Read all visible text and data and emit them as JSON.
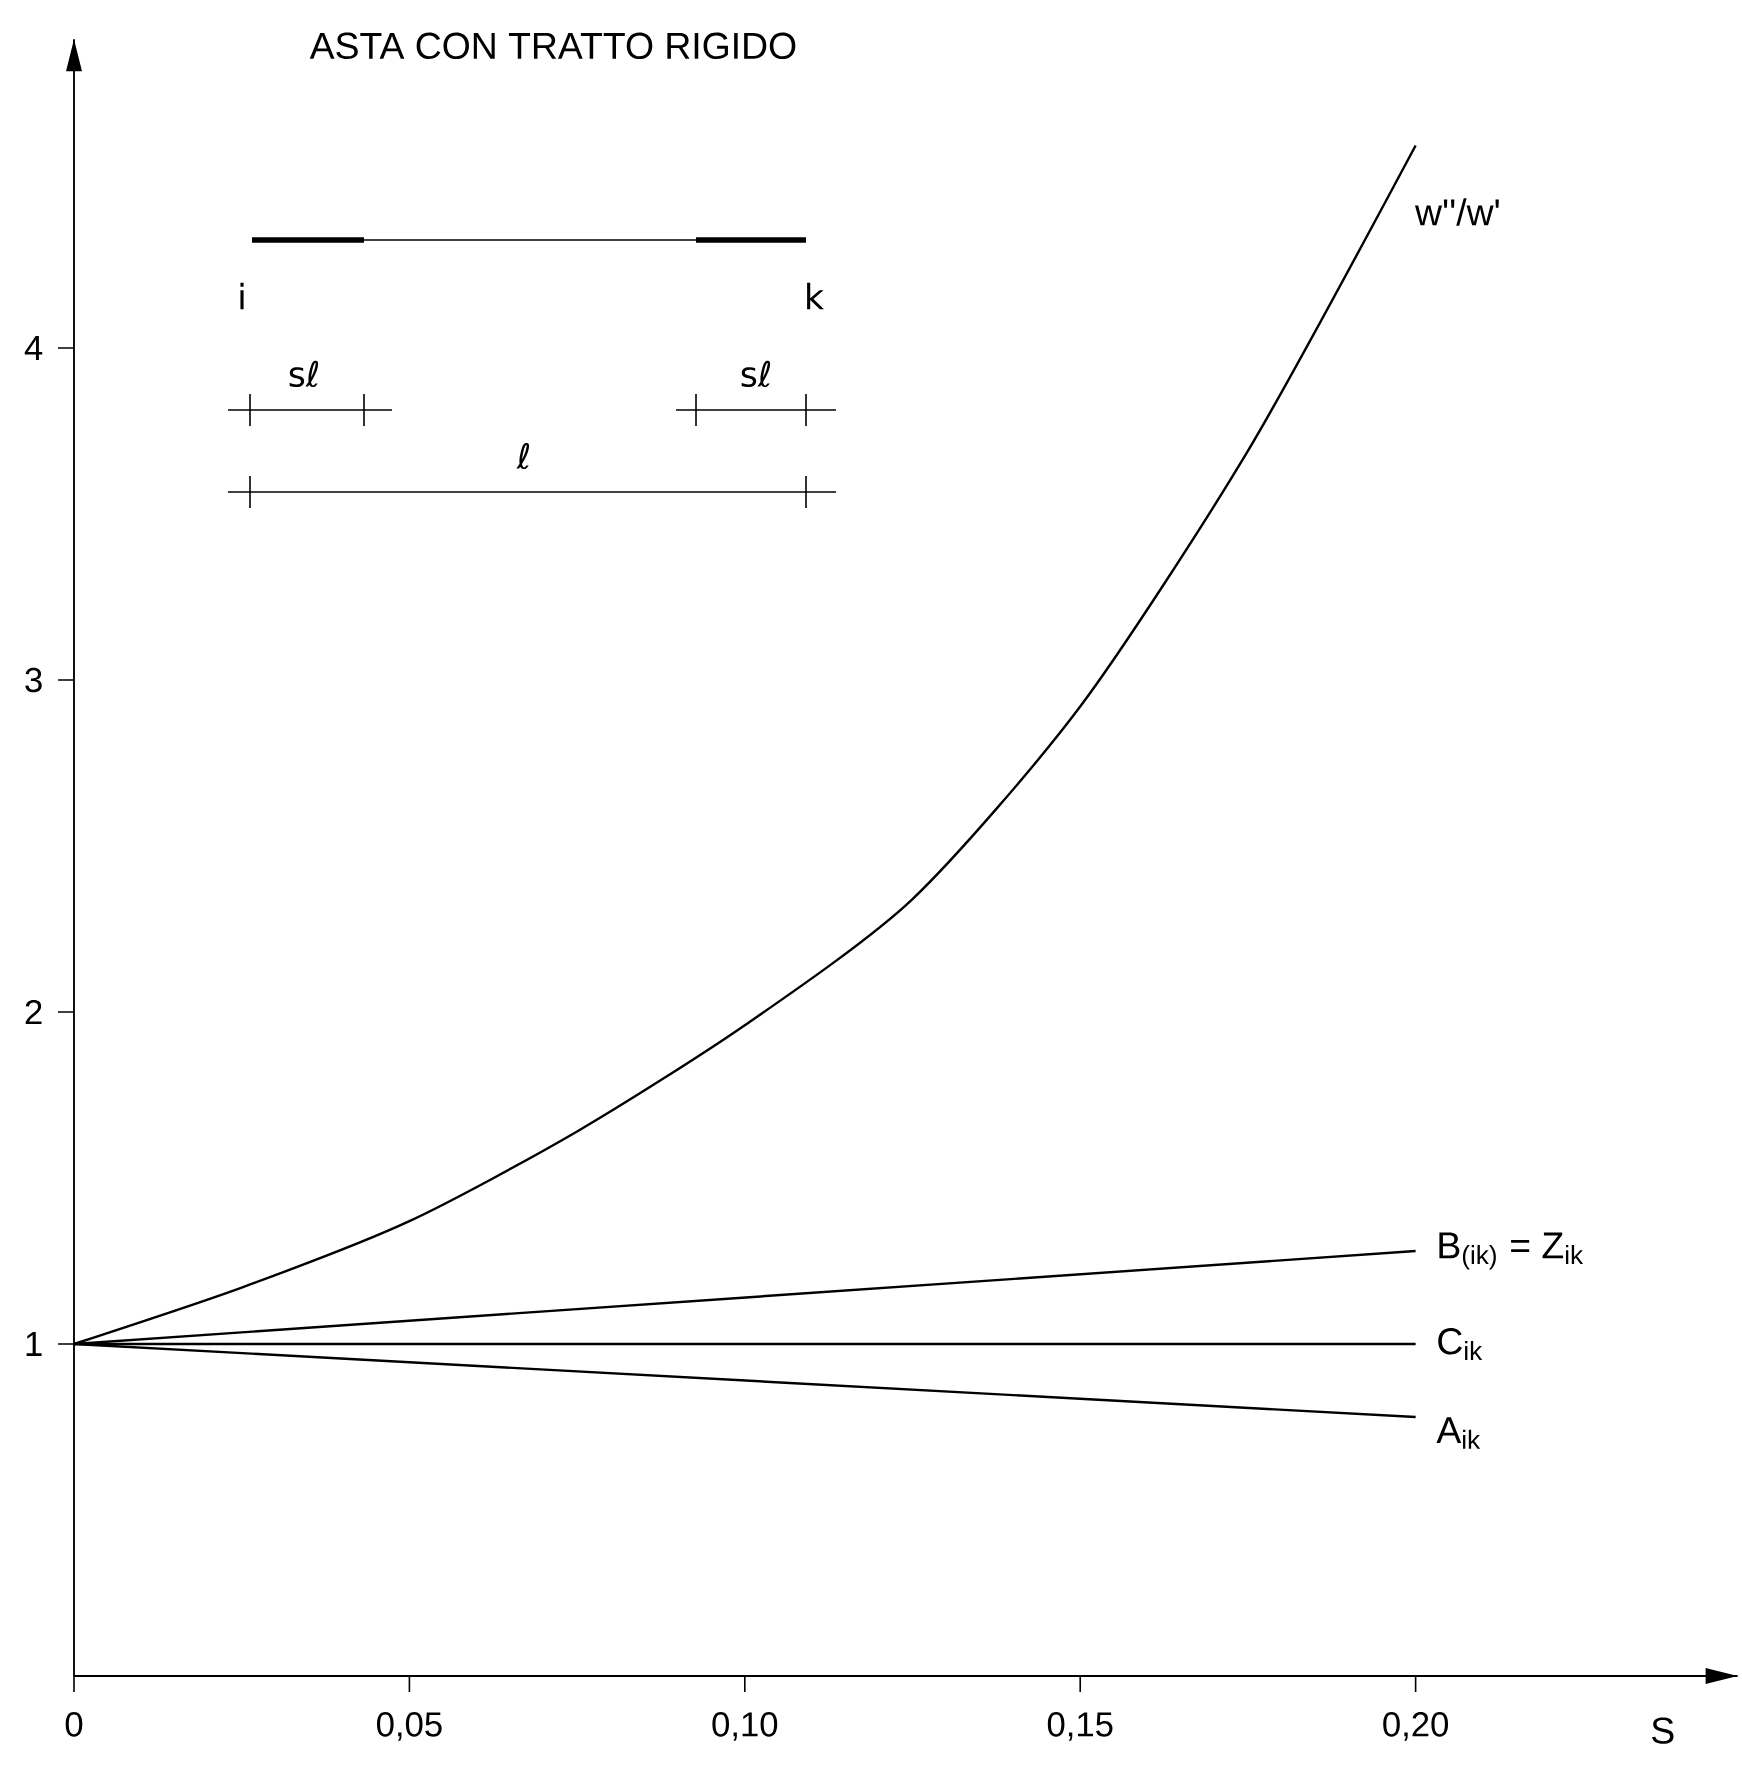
{
  "chart_data": {
    "type": "line",
    "title": "ASTA CON TRATTO RIGIDO",
    "xlabel": "S",
    "xlim": [
      0,
      0.248
    ],
    "ylim": [
      0,
      4.93
    ],
    "xticks": [
      {
        "value": 0,
        "label": "0"
      },
      {
        "value": 0.05,
        "label": "0,05"
      },
      {
        "value": 0.1,
        "label": "0,10"
      },
      {
        "value": 0.15,
        "label": "0,15"
      },
      {
        "value": 0.2,
        "label": "0,20"
      }
    ],
    "yticks": [
      1,
      2,
      3,
      4
    ],
    "series": [
      {
        "name": "w''/w'",
        "color": "#000000",
        "x": [
          0,
          0.025,
          0.05,
          0.075,
          0.1,
          0.125,
          0.15,
          0.175,
          0.2
        ],
        "values": [
          1,
          1.17,
          1.37,
          1.64,
          1.96,
          2.34,
          2.92,
          3.69,
          4.61
        ]
      },
      {
        "name": "B$_{(ik)}$ = Z$_{ik}$",
        "color": "#000000",
        "x": [
          0,
          0.2
        ],
        "values": [
          1,
          1.28
        ]
      },
      {
        "name": "C$_{ik}$",
        "color": "#000000",
        "x": [
          0,
          0.2
        ],
        "values": [
          1,
          1
        ]
      },
      {
        "name": "A$_{ik}$",
        "color": "#000000",
        "x": [
          0,
          0.2
        ],
        "values": [
          1,
          0.78
        ]
      }
    ],
    "annotations": [
      "i",
      "k",
      "sℓ",
      "sℓ",
      "ℓ"
    ]
  }
}
